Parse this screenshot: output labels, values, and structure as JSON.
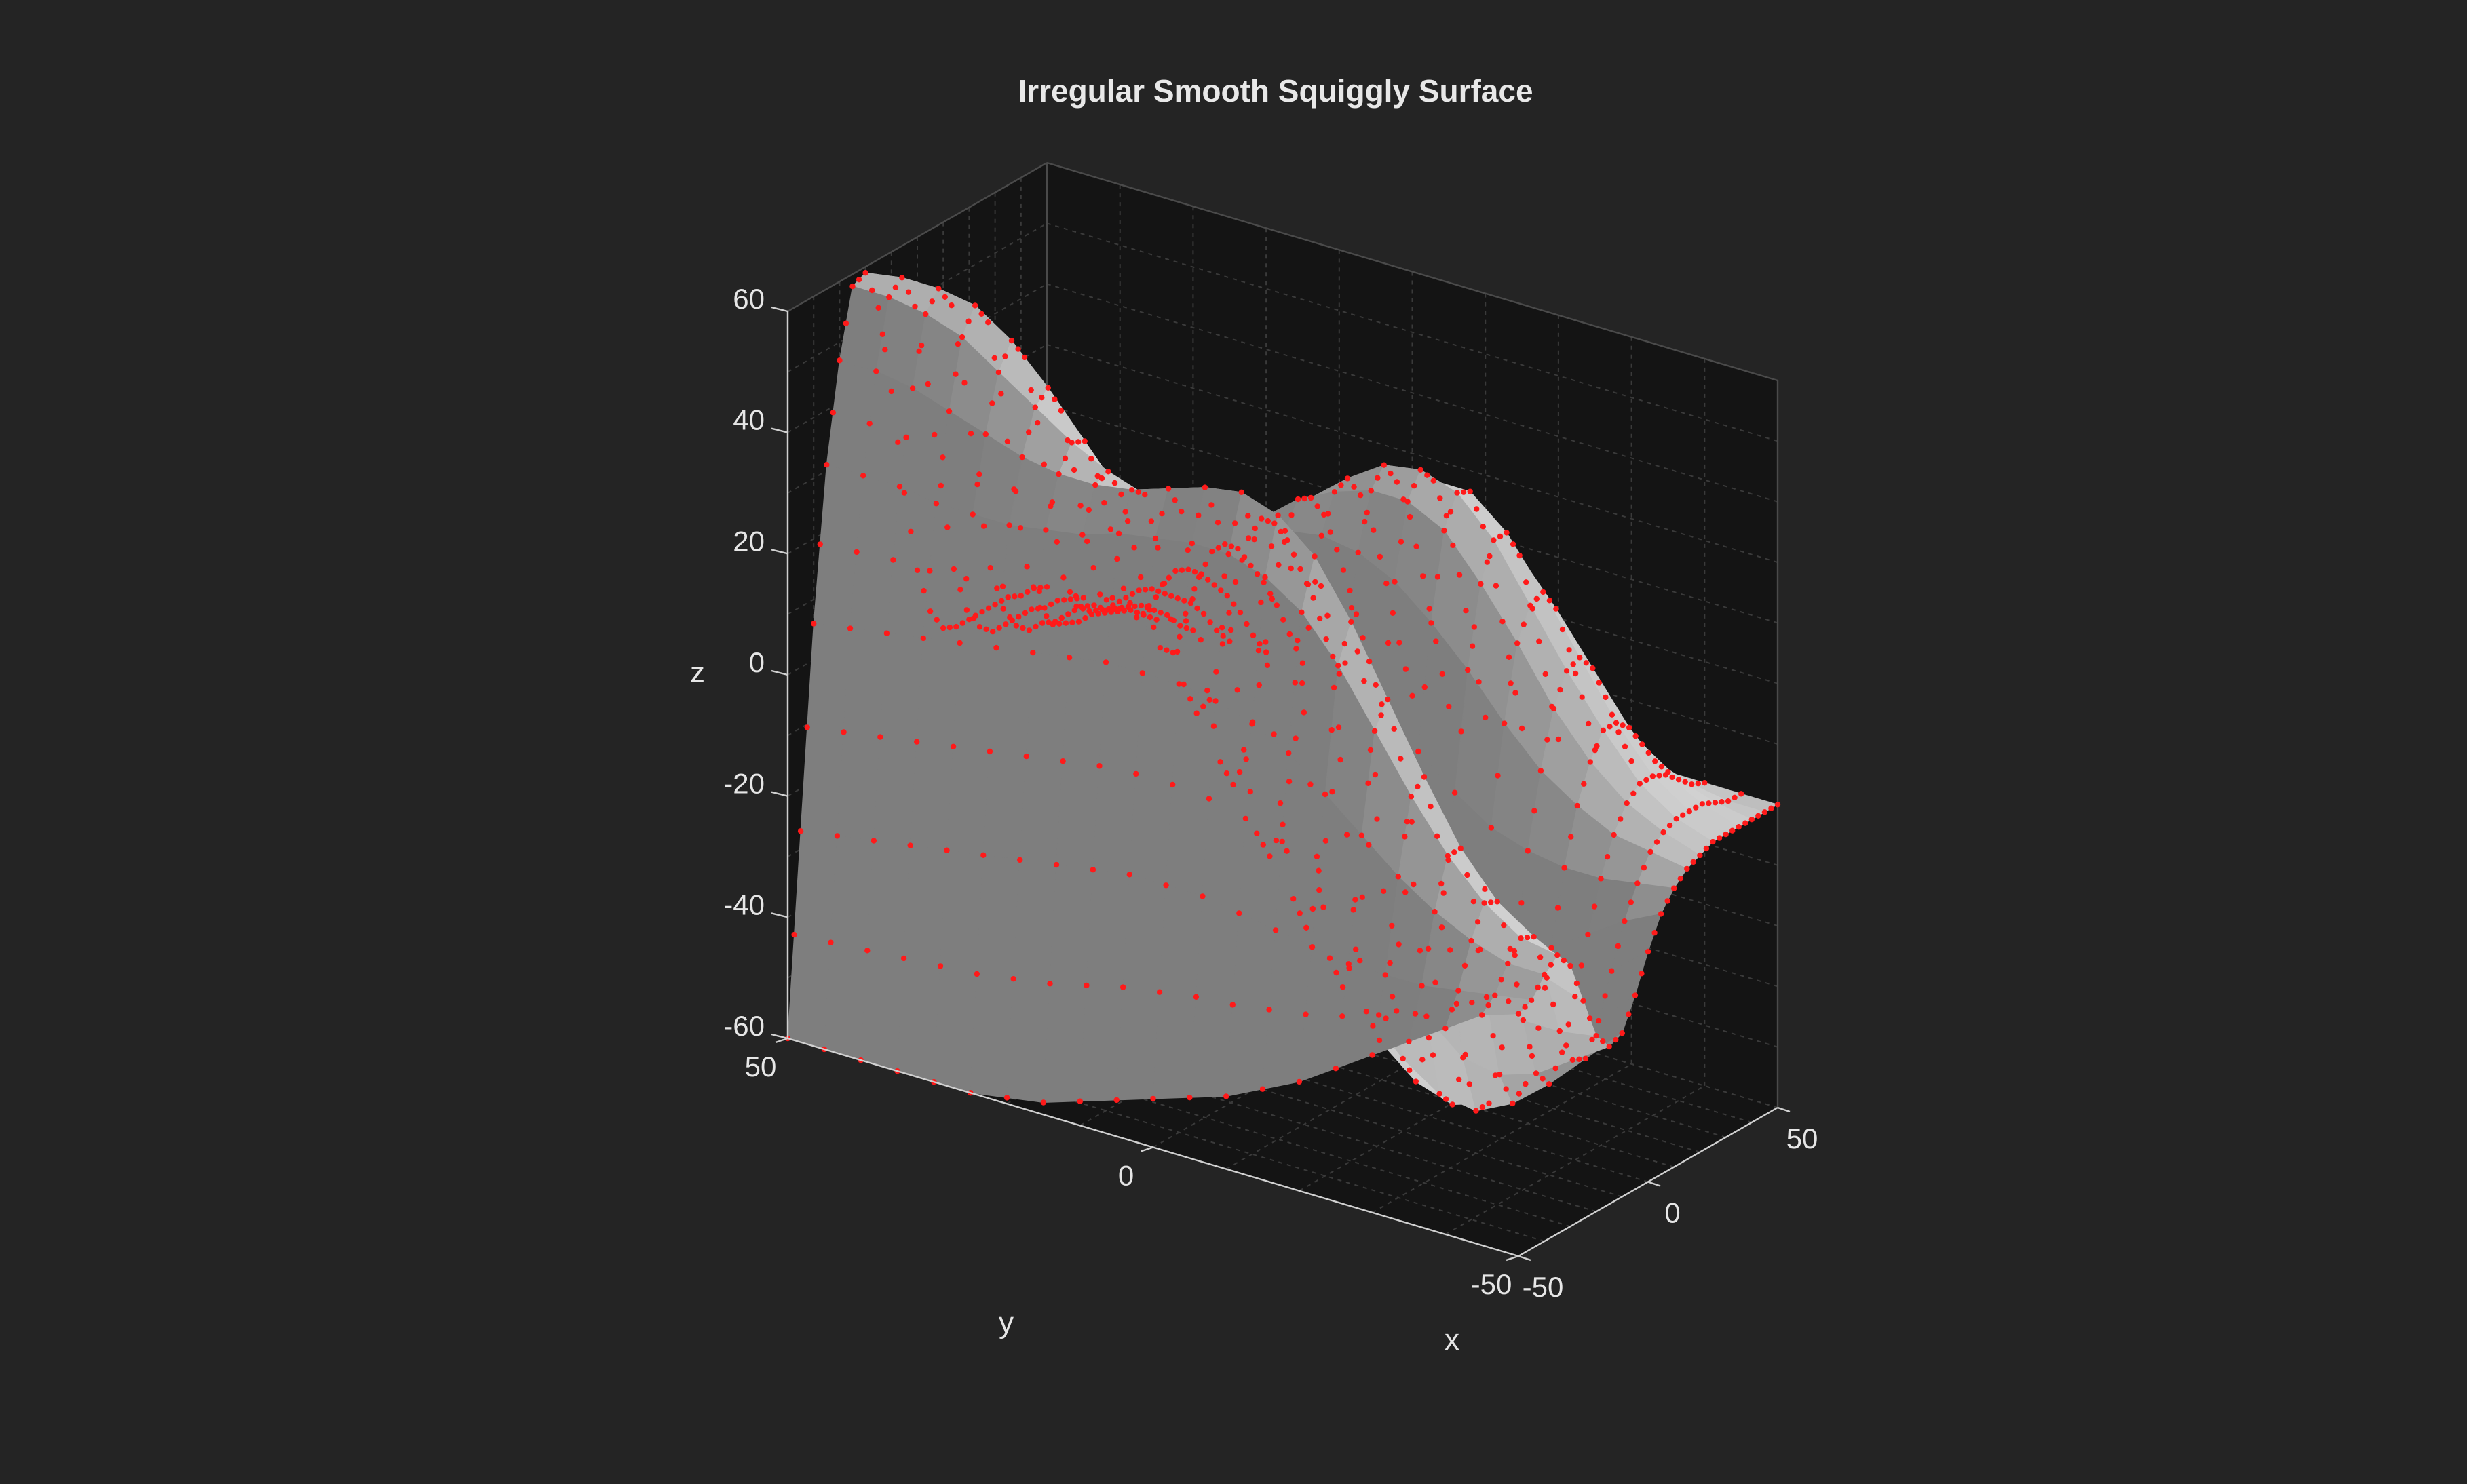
{
  "chart_data": {
    "type": "surface",
    "title": "Irregular Smooth Squiggly Surface",
    "xlabel": "x",
    "ylabel": "y",
    "zlabel": "z",
    "xlim": [
      -50,
      50
    ],
    "ylim": [
      -50,
      50
    ],
    "zlim": [
      -60,
      60
    ],
    "x_ticks": [
      "-50",
      "0",
      "50"
    ],
    "y_ticks": [
      "-50",
      "0",
      "50"
    ],
    "z_ticks": [
      "-60",
      "-40",
      "-20",
      "0",
      "20",
      "40",
      "60"
    ],
    "grid": true,
    "surface_color": "#c8c8c8",
    "marker_color": "#ff1a1a",
    "background_color": "#242424",
    "axes_pane_color": "#141414",
    "z_grid": {
      "x": [
        -50,
        -45,
        -40,
        -35,
        -30,
        -25,
        -20,
        -15,
        -10,
        -5,
        0,
        5,
        10,
        15,
        20,
        25,
        30,
        35,
        40,
        45,
        50
      ],
      "y": [
        -50,
        -45,
        -40,
        -35,
        -30,
        -25,
        -20,
        -15,
        -10,
        -5,
        0,
        5,
        10,
        15,
        20,
        25,
        30,
        35,
        40,
        45,
        50
      ],
      "rows_by_y": [
        [
          -20,
          -19,
          -16,
          -14,
          -17,
          -24,
          -31,
          -34,
          -33,
          -28,
          -22,
          -17,
          -14,
          -12,
          -11,
          -10,
          -10,
          -10,
          -10,
          -10,
          -10
        ],
        [
          -22,
          -20,
          -16,
          -13,
          -14,
          -22,
          -32,
          -38,
          -39,
          -34,
          -27,
          -20,
          -15,
          -11,
          -9,
          -8,
          -8,
          -8,
          -9,
          -10,
          -10
        ],
        [
          -26,
          -21,
          -14,
          -9,
          -10,
          -19,
          -32,
          -42,
          -45,
          -41,
          -33,
          -24,
          -16,
          -10,
          -6,
          -4,
          -4,
          -5,
          -7,
          -9,
          -10
        ],
        [
          -30,
          -22,
          -11,
          -3,
          -3,
          -13,
          -30,
          -44,
          -50,
          -48,
          -40,
          -28,
          -16,
          -7,
          -1,
          3,
          3,
          1,
          -3,
          -7,
          -10
        ],
        [
          -34,
          -22,
          -7,
          5,
          7,
          -4,
          -24,
          -43,
          -53,
          -53,
          -45,
          -31,
          -15,
          -3,
          6,
          11,
          12,
          9,
          3,
          -4,
          -10
        ],
        [
          -38,
          -22,
          -2,
          14,
          18,
          7,
          -15,
          -38,
          -52,
          -55,
          -48,
          -32,
          -13,
          3,
          15,
          20,
          21,
          17,
          9,
          0,
          -10
        ],
        [
          -42,
          -21,
          3,
          23,
          29,
          18,
          -6,
          -31,
          -48,
          -53,
          -47,
          -30,
          -9,
          10,
          23,
          29,
          29,
          24,
          14,
          2,
          -10
        ],
        [
          -45,
          -20,
          8,
          30,
          38,
          27,
          2,
          -24,
          -42,
          -48,
          -42,
          -26,
          -4,
          16,
          30,
          35,
          34,
          27,
          16,
          3,
          -10
        ],
        [
          -48,
          -19,
          11,
          34,
          43,
          33,
          8,
          -17,
          -35,
          -41,
          -36,
          -20,
          2,
          21,
          33,
          37,
          34,
          27,
          16,
          3,
          -10
        ],
        [
          -50,
          -18,
          13,
          36,
          45,
          36,
          14,
          -10,
          -27,
          -33,
          -28,
          -13,
          7,
          24,
          33,
          36,
          32,
          25,
          14,
          2,
          -10
        ],
        [
          -52,
          -18,
          14,
          36,
          44,
          37,
          18,
          -3,
          -18,
          -23,
          -19,
          -6,
          11,
          25,
          31,
          32,
          28,
          21,
          11,
          0,
          -10
        ],
        [
          -54,
          -18,
          14,
          35,
          42,
          37,
          23,
          5,
          -8,
          -13,
          -10,
          1,
          14,
          24,
          28,
          27,
          23,
          16,
          8,
          -1,
          -10
        ],
        [
          -56,
          -19,
          14,
          34,
          40,
          38,
          28,
          15,
          3,
          -3,
          -2,
          6,
          15,
          21,
          23,
          21,
          17,
          11,
          5,
          -3,
          -10
        ],
        [
          -58,
          -20,
          13,
          32,
          39,
          40,
          35,
          25,
          14,
          6,
          4,
          8,
          14,
          17,
          17,
          15,
          11,
          7,
          2,
          -4,
          -10
        ],
        [
          -59,
          -21,
          12,
          31,
          39,
          43,
          42,
          35,
          25,
          14,
          8,
          8,
          11,
          12,
          11,
          9,
          6,
          3,
          -1,
          -6,
          -10
        ],
        [
          -60,
          -22,
          11,
          30,
          40,
          47,
          49,
          44,
          33,
          20,
          10,
          7,
          7,
          7,
          6,
          4,
          2,
          0,
          -3,
          -7,
          -10
        ],
        [
          -60,
          -23,
          10,
          30,
          42,
          51,
          55,
          51,
          39,
          24,
          11,
          5,
          3,
          2,
          1,
          0,
          -1,
          -3,
          -5,
          -8,
          -10
        ],
        [
          -60,
          -24,
          9,
          30,
          44,
          55,
          59,
          55,
          42,
          25,
          11,
          3,
          -1,
          -2,
          -3,
          -3,
          -4,
          -5,
          -6,
          -8,
          -10
        ],
        [
          -60,
          -25,
          8,
          31,
          46,
          57,
          60,
          56,
          42,
          24,
          9,
          1,
          -3,
          -5,
          -5,
          -6,
          -6,
          -6,
          -7,
          -9,
          -10
        ],
        [
          -60,
          -26,
          7,
          31,
          47,
          58,
          60,
          54,
          40,
          22,
          7,
          -1,
          -5,
          -7,
          -7,
          -7,
          -7,
          -8,
          -8,
          -9,
          -10
        ],
        [
          -60,
          -27,
          6,
          31,
          47,
          58,
          59,
          52,
          37,
          19,
          5,
          -3,
          -7,
          -8,
          -8,
          -8,
          -8,
          -8,
          -9,
          -9,
          -10
        ]
      ]
    }
  }
}
